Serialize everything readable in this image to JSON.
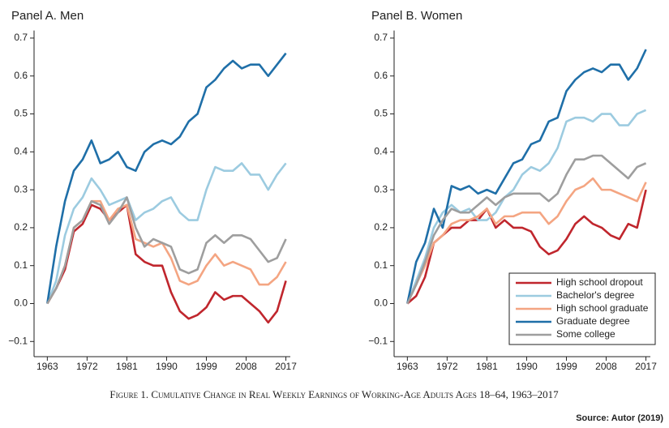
{
  "chart_data": [
    {
      "type": "line",
      "title": "Panel A. Men",
      "x": [
        1963,
        1965,
        1967,
        1969,
        1971,
        1973,
        1975,
        1977,
        1979,
        1981,
        1983,
        1985,
        1987,
        1989,
        1991,
        1993,
        1995,
        1997,
        1999,
        2001,
        2003,
        2005,
        2007,
        2009,
        2011,
        2013,
        2015,
        2017
      ],
      "xlim": [
        1960,
        2018
      ],
      "xticks": [
        1963,
        1972,
        1981,
        1990,
        1999,
        2008,
        2017
      ],
      "ylim": [
        -0.14,
        0.72
      ],
      "yticks": [
        {
          "value": -0.1,
          "label": "−0.1"
        },
        {
          "value": 0,
          "label": "0.0"
        },
        0.1,
        0.2,
        0.3,
        0.4,
        0.5,
        0.6,
        0.7
      ],
      "series": [
        {
          "color": "#c0262d",
          "values": [
            0,
            0.04,
            0.09,
            0.19,
            0.21,
            0.26,
            0.25,
            0.22,
            0.24,
            0.26,
            0.13,
            0.11,
            0.1,
            0.1,
            0.03,
            -0.02,
            -0.04,
            -0.03,
            -0.01,
            0.03,
            0.01,
            0.02,
            0.02,
            0.0,
            -0.02,
            -0.05,
            -0.02,
            0.06
          ]
        },
        {
          "color": "#9ccbe0",
          "values": [
            0,
            0.06,
            0.18,
            0.25,
            0.28,
            0.33,
            0.3,
            0.26,
            0.27,
            0.28,
            0.22,
            0.24,
            0.25,
            0.27,
            0.28,
            0.24,
            0.22,
            0.22,
            0.3,
            0.36,
            0.35,
            0.35,
            0.37,
            0.34,
            0.34,
            0.3,
            0.34,
            0.37
          ]
        },
        {
          "color": "#f4a582",
          "values": [
            0,
            0.04,
            0.1,
            0.2,
            0.22,
            0.27,
            0.27,
            0.22,
            0.25,
            0.26,
            0.17,
            0.16,
            0.15,
            0.16,
            0.12,
            0.06,
            0.05,
            0.06,
            0.1,
            0.13,
            0.1,
            0.11,
            0.1,
            0.09,
            0.05,
            0.05,
            0.07,
            0.11
          ]
        },
        {
          "color": "#1f6fa8",
          "values": [
            0,
            0.15,
            0.27,
            0.35,
            0.38,
            0.43,
            0.37,
            0.38,
            0.4,
            0.36,
            0.35,
            0.4,
            0.42,
            0.43,
            0.42,
            0.44,
            0.48,
            0.5,
            0.57,
            0.59,
            0.62,
            0.64,
            0.62,
            0.63,
            0.63,
            0.6,
            0.63,
            0.66
          ]
        },
        {
          "color": "#9e9e9e",
          "values": [
            0,
            0.04,
            0.1,
            0.2,
            0.22,
            0.27,
            0.26,
            0.21,
            0.24,
            0.28,
            0.2,
            0.15,
            0.17,
            0.16,
            0.15,
            0.09,
            0.08,
            0.09,
            0.16,
            0.18,
            0.16,
            0.18,
            0.18,
            0.17,
            0.14,
            0.11,
            0.12,
            0.17
          ]
        }
      ]
    },
    {
      "type": "line",
      "title": "Panel B. Women",
      "x": [
        1963,
        1965,
        1967,
        1969,
        1971,
        1973,
        1975,
        1977,
        1979,
        1981,
        1983,
        1985,
        1987,
        1989,
        1991,
        1993,
        1995,
        1997,
        1999,
        2001,
        2003,
        2005,
        2007,
        2009,
        2011,
        2013,
        2015,
        2017
      ],
      "xlim": [
        1960,
        2018
      ],
      "xticks": [
        1963,
        1972,
        1981,
        1990,
        1999,
        2008,
        2017
      ],
      "ylim": [
        -0.14,
        0.72
      ],
      "yticks": [
        {
          "value": -0.1,
          "label": "−0.1"
        },
        {
          "value": 0,
          "label": "0.0"
        },
        0.1,
        0.2,
        0.3,
        0.4,
        0.5,
        0.6,
        0.7
      ],
      "legend": "lower right",
      "series": [
        {
          "name": "High school dropout",
          "color": "#c0262d",
          "values": [
            0,
            0.02,
            0.07,
            0.16,
            0.18,
            0.2,
            0.2,
            0.22,
            0.22,
            0.25,
            0.2,
            0.22,
            0.2,
            0.2,
            0.19,
            0.15,
            0.13,
            0.14,
            0.17,
            0.21,
            0.23,
            0.21,
            0.2,
            0.18,
            0.17,
            0.21,
            0.2,
            0.3
          ]
        },
        {
          "name": "Bachelor's degree",
          "color": "#9ccbe0",
          "values": [
            0,
            0.06,
            0.12,
            0.2,
            0.24,
            0.26,
            0.24,
            0.25,
            0.22,
            0.22,
            0.24,
            0.28,
            0.3,
            0.34,
            0.36,
            0.35,
            0.37,
            0.41,
            0.48,
            0.49,
            0.49,
            0.48,
            0.5,
            0.5,
            0.47,
            0.47,
            0.5,
            0.51
          ]
        },
        {
          "name": "High school graduate",
          "color": "#f4a582",
          "values": [
            0,
            0.05,
            0.1,
            0.16,
            0.18,
            0.21,
            0.22,
            0.22,
            0.23,
            0.25,
            0.21,
            0.23,
            0.23,
            0.24,
            0.24,
            0.24,
            0.21,
            0.23,
            0.27,
            0.3,
            0.31,
            0.33,
            0.3,
            0.3,
            0.29,
            0.28,
            0.27,
            0.32
          ]
        },
        {
          "name": "Graduate degree",
          "color": "#1f6fa8",
          "values": [
            0,
            0.11,
            0.16,
            0.25,
            0.2,
            0.31,
            0.3,
            0.31,
            0.29,
            0.3,
            0.29,
            0.33,
            0.37,
            0.38,
            0.42,
            0.43,
            0.48,
            0.49,
            0.56,
            0.59,
            0.61,
            0.62,
            0.61,
            0.63,
            0.63,
            0.59,
            0.62,
            0.67
          ]
        },
        {
          "name": "Some college",
          "color": "#9e9e9e",
          "values": [
            0,
            0.05,
            0.11,
            0.18,
            0.22,
            0.25,
            0.24,
            0.24,
            0.26,
            0.28,
            0.26,
            0.28,
            0.29,
            0.29,
            0.29,
            0.29,
            0.27,
            0.29,
            0.34,
            0.38,
            0.38,
            0.39,
            0.39,
            0.37,
            0.35,
            0.33,
            0.36,
            0.37
          ]
        }
      ]
    }
  ],
  "caption": "Figure 1. Cumulative Change in Real Weekly Earnings of Working-Age Adults Ages 18–64, 1963–2017",
  "source": "Source: Autor (2019)"
}
